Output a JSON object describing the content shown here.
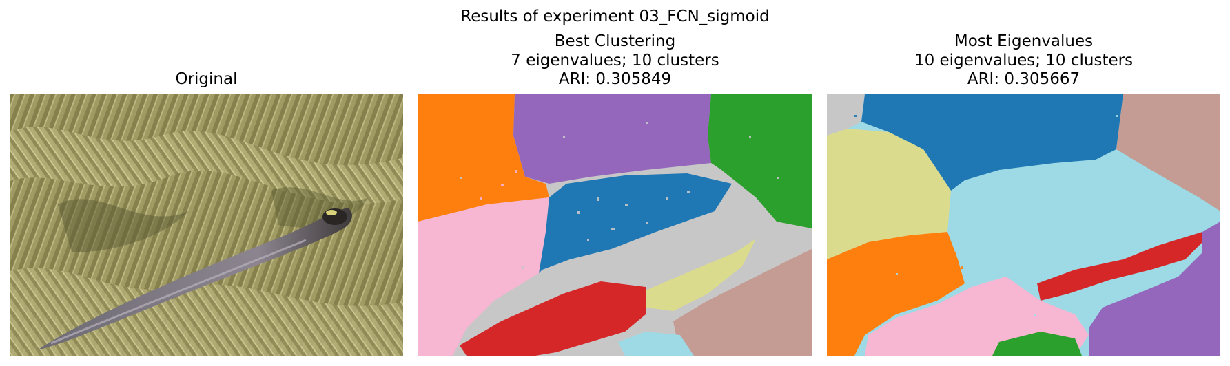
{
  "figure": {
    "suptitle": "Results of experiment 03_FCN_sigmoid"
  },
  "panels": [
    {
      "title_lines": [
        "Original"
      ],
      "kind": "photo"
    },
    {
      "title_lines": [
        "Best Clustering",
        "7 eigenvalues; 10 clusters",
        "ARI: 0.305849"
      ],
      "kind": "segmentation"
    },
    {
      "title_lines": [
        "Most Eigenvalues",
        "10 eigenvalues; 10 clusters",
        "ARI: 0.305667"
      ],
      "kind": "segmentation"
    }
  ],
  "palette": {
    "blue": "#1f77b4",
    "orange": "#ff7f0e",
    "green": "#2ca02c",
    "red": "#d62728",
    "purple": "#9467bd",
    "brown": "#c49c94",
    "pink": "#f7b6d2",
    "gray": "#c7c7c7",
    "olive": "#dbdb8d",
    "cyan": "#9edae5"
  }
}
